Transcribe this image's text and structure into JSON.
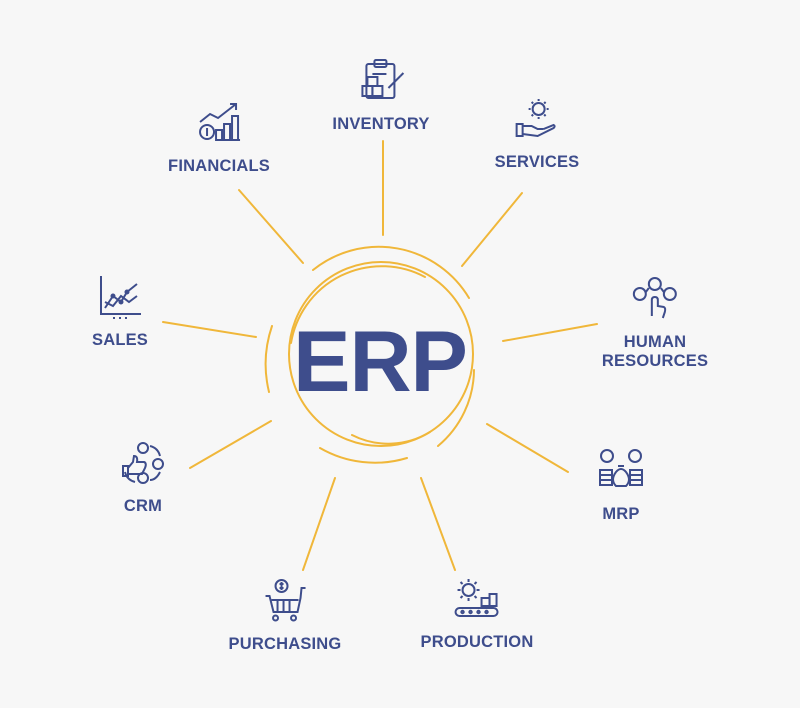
{
  "center": {
    "label": "ERP"
  },
  "colors": {
    "accent": "#f0b73a",
    "text": "#3e4d8c",
    "background": "#f7f7f7"
  },
  "modules": [
    {
      "id": "inventory",
      "label": "INVENTORY",
      "icon": "clipboard-boxes-icon"
    },
    {
      "id": "services",
      "label": "SERVICES",
      "icon": "hand-gear-icon"
    },
    {
      "id": "human-resources",
      "label": "HUMAN\nRESOURCES",
      "icon": "people-network-icon"
    },
    {
      "id": "mrp",
      "label": "MRP",
      "icon": "money-bag-coins-icon"
    },
    {
      "id": "production",
      "label": "PRODUCTION",
      "icon": "gear-conveyor-icon"
    },
    {
      "id": "purchasing",
      "label": "PURCHASING",
      "icon": "shopping-cart-dollar-icon"
    },
    {
      "id": "crm",
      "label": "CRM",
      "icon": "thumbs-up-chat-icon"
    },
    {
      "id": "sales",
      "label": "SALES",
      "icon": "line-chart-icon"
    },
    {
      "id": "financials",
      "label": "FINANCIALS",
      "icon": "growth-coins-icon"
    }
  ]
}
